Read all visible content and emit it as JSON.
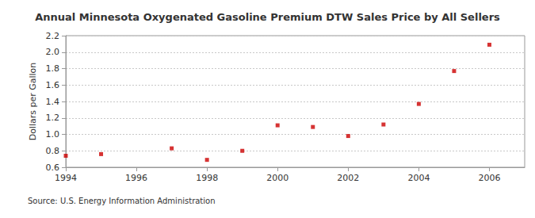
{
  "chart_data": {
    "type": "scatter",
    "title": "Annual Minnesota Oxygenated Gasoline Premium DTW Sales Price by All Sellers",
    "y_label": "Dollars per Gallon",
    "source": "Source: U.S. Energy Information Administration",
    "x": [
      1994,
      1995,
      1997,
      1998,
      1999,
      2000,
      2001,
      2002,
      2003,
      2004,
      2005,
      2006
    ],
    "values": [
      0.74,
      0.76,
      0.83,
      0.69,
      0.8,
      1.11,
      1.09,
      0.98,
      1.12,
      1.37,
      1.77,
      2.09
    ],
    "color": "#cc0000",
    "marker": "square",
    "xlim": [
      1994,
      2007
    ],
    "xticks": [
      1994,
      1996,
      1998,
      2000,
      2002,
      2004,
      2006
    ],
    "ylim": [
      0.6,
      2.2
    ],
    "yticks": [
      0.6,
      0.8,
      {
        "value": 1,
        "label": "1.0"
      },
      1.2,
      1.4,
      1.6,
      1.8,
      {
        "value": 2,
        "label": "2.0"
      },
      2.2
    ],
    "grid": true
  }
}
